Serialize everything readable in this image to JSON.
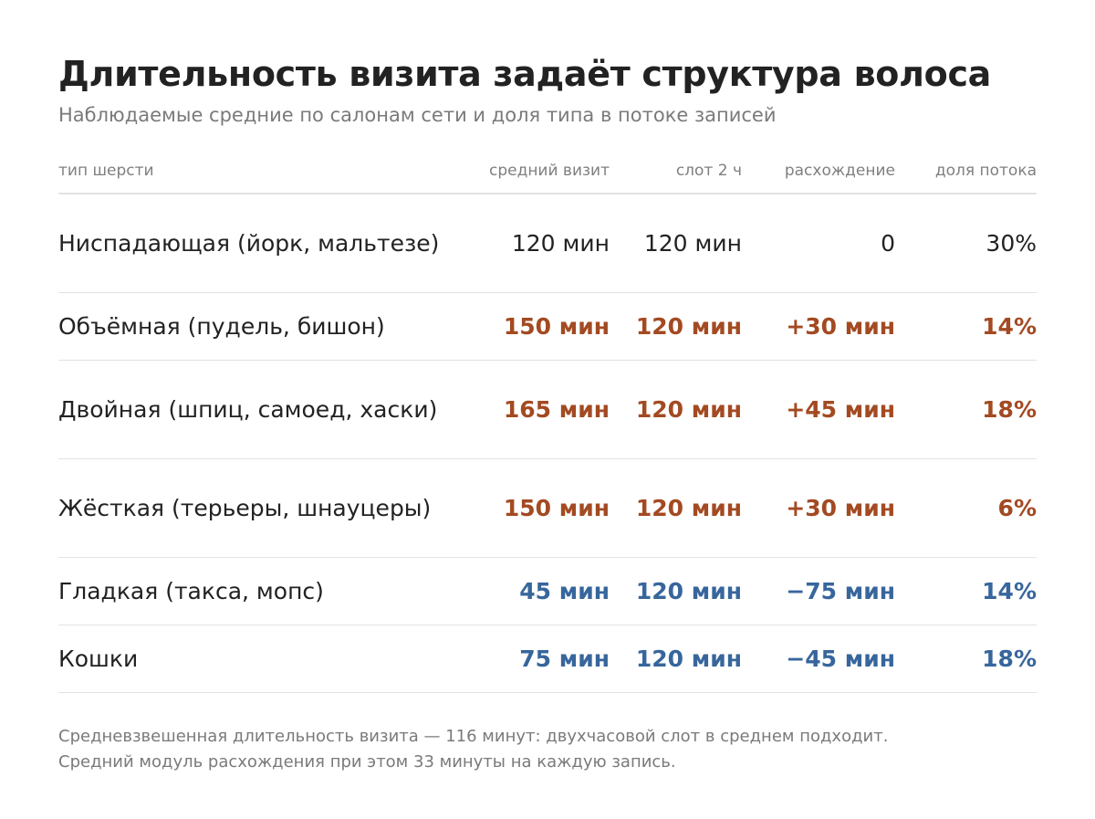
{
  "title": "Длительность визита задаёт структура волоса",
  "subtitle": "Наблюдаемые средние по салонам сети и доля типа в потоке записей",
  "colors": {
    "neutral": "#222222",
    "over": "#a34a22",
    "under": "#37669c",
    "muted": "#7a7a7a"
  },
  "chart_data": {
    "type": "table",
    "columns": [
      "тип шерсти",
      "средний визит",
      "слот 2 ч",
      "расхождение",
      "доля потока"
    ],
    "rows": [
      {
        "type": "Ниспадающая (йорк, мальтезе)",
        "avg_visit": "120 мин",
        "slot": "120 мин",
        "diff": "0",
        "share": "30%",
        "status": "neutral"
      },
      {
        "type": "Объёмная (пудель, бишон)",
        "avg_visit": "150 мин",
        "slot": "120 мин",
        "diff": "+30 мин",
        "share": "14%",
        "status": "over"
      },
      {
        "type": "Двойная (шпиц, самоед, хаски)",
        "avg_visit": "165 мин",
        "slot": "120 мин",
        "diff": "+45 мин",
        "share": "18%",
        "status": "over"
      },
      {
        "type": "Жёсткая (терьеры, шнауцеры)",
        "avg_visit": "150 мин",
        "slot": "120 мин",
        "diff": "+30 мин",
        "share": "6%",
        "status": "over"
      },
      {
        "type": "Гладкая (такса, мопс)",
        "avg_visit": "45 мин",
        "slot": "120 мин",
        "diff": "−75 мин",
        "share": "14%",
        "status": "under"
      },
      {
        "type": "Кошки",
        "avg_visit": "75 мин",
        "slot": "120 мин",
        "diff": "−45 мин",
        "share": "18%",
        "status": "under"
      }
    ]
  },
  "footnote": {
    "line1": "Средневзвешенная длительность визита — 116 минут: двухчасовой слот в среднем подходит.",
    "line2": "Средний модуль расхождения при этом 33 минуты на каждую запись."
  }
}
